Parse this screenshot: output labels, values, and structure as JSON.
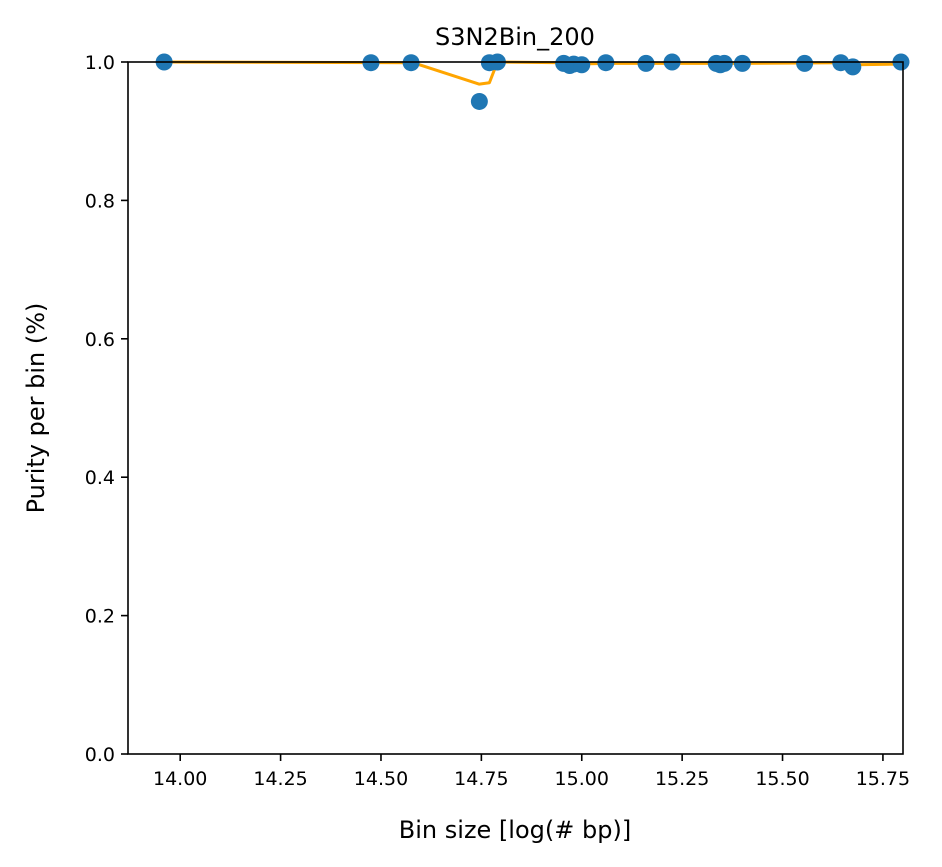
{
  "chart_data": {
    "type": "scatter",
    "title": "S3N2Bin_200",
    "xlabel": "Bin size [log(# bp)]",
    "ylabel": "Purity per bin (%)",
    "xlim": [
      13.87,
      15.8
    ],
    "ylim": [
      0.0,
      1.0
    ],
    "xticks": [
      "14.00",
      "14.25",
      "14.50",
      "14.75",
      "15.00",
      "15.25",
      "15.50",
      "15.75"
    ],
    "yticks": [
      "0.0",
      "0.2",
      "0.4",
      "0.6",
      "0.8",
      "1.0"
    ],
    "grid": false,
    "colors": {
      "points": "#1f77b4",
      "trend": "#ffa500"
    },
    "series": [
      {
        "type": "scatter",
        "x": [
          13.96,
          14.475,
          14.575,
          14.745,
          14.77,
          14.79,
          14.955,
          14.97,
          14.98,
          15.0,
          15.06,
          15.16,
          15.225,
          15.335,
          15.345,
          15.355,
          15.4,
          15.555,
          15.645,
          15.675,
          15.795
        ],
        "y": [
          1.0,
          0.999,
          0.999,
          0.943,
          0.999,
          1.0,
          0.998,
          0.995,
          0.997,
          0.996,
          0.999,
          0.998,
          1.0,
          0.998,
          0.996,
          0.998,
          0.998,
          0.998,
          0.999,
          0.993,
          1.0
        ]
      },
      {
        "type": "line",
        "x": [
          13.96,
          14.58,
          14.745,
          14.77,
          14.79,
          14.955,
          14.98,
          15.06,
          15.4,
          15.645,
          15.68,
          15.8
        ],
        "y": [
          1.0,
          0.999,
          0.968,
          0.97,
          1.0,
          0.999,
          0.997,
          0.998,
          0.998,
          0.999,
          0.996,
          0.997
        ]
      }
    ]
  }
}
